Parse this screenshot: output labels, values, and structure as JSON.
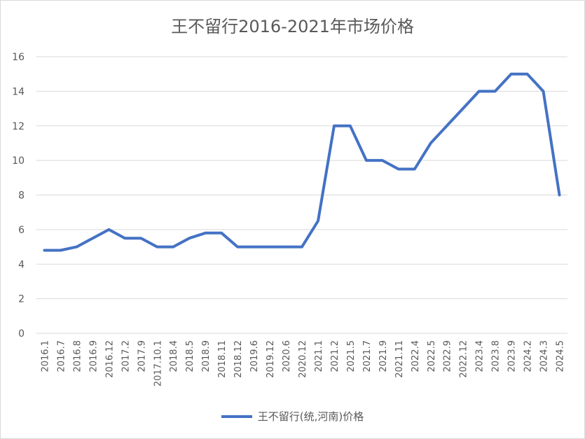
{
  "chart_data": {
    "type": "line",
    "title": "王不留行2016-2021年市场价格",
    "xlabel": "",
    "ylabel": "",
    "ylim": [
      0,
      16
    ],
    "yticks": [
      0,
      2,
      4,
      6,
      8,
      10,
      12,
      14,
      16
    ],
    "grid": true,
    "legend_position": "bottom",
    "categories": [
      "2016.1",
      "2016.7",
      "2016.8",
      "2016.9",
      "2016.12",
      "2017.2",
      "2017.9",
      "2017.10.1",
      "2018.4",
      "2018.5",
      "2018.9",
      "2018.11",
      "2018.12",
      "2019.6",
      "2019.12",
      "2020.6",
      "2020.12",
      "2021.1",
      "2021.2",
      "2021.5",
      "2021.7",
      "2021.9",
      "2021.11",
      "2022.4",
      "2022.5",
      "2022.9",
      "2022.12",
      "2023.4",
      "2023.8",
      "2023.9",
      "2024.2",
      "2024.3",
      "2024.5"
    ],
    "series": [
      {
        "name": "王不留行(统,河南)价格",
        "color": "#4472c4",
        "values": [
          4.8,
          4.8,
          5,
          5.5,
          6,
          5.5,
          5.5,
          5,
          5,
          5.5,
          5.8,
          5.8,
          5,
          5,
          5,
          5,
          5,
          6.5,
          12,
          12,
          10,
          10,
          9.5,
          9.5,
          11,
          12,
          13,
          14,
          14,
          15,
          15,
          14,
          8
        ]
      }
    ]
  }
}
